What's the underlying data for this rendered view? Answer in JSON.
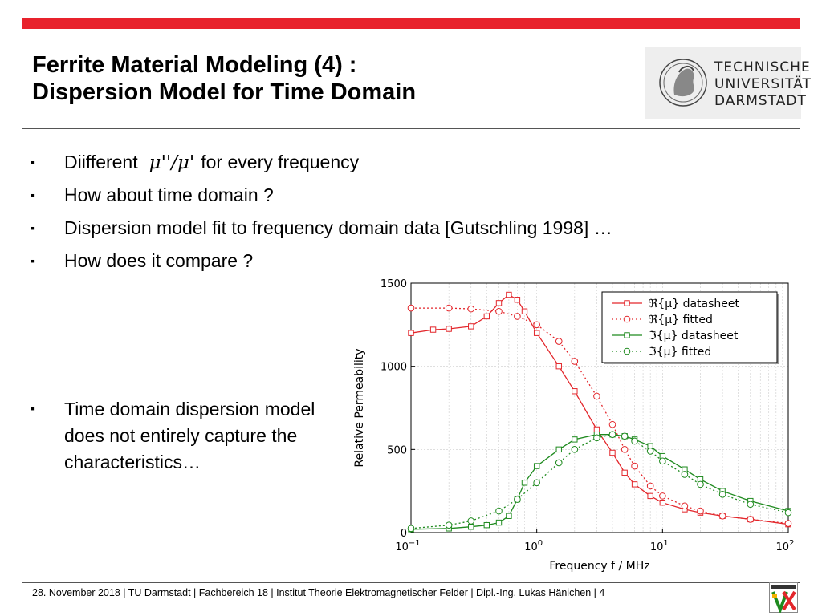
{
  "slide": {
    "title_line1": "Ferrite Material Modeling (4) :",
    "title_line2": "Dispersion Model for Time Domain",
    "logo_lines": [
      "TECHNISCHE",
      "UNIVERSITÄT",
      "DARMSTADT"
    ],
    "bullet_marker": "▪",
    "bullets": {
      "b1_pre": "Diifferent",
      "b1_math": "μ''/μ'",
      "b1_post": "for every frequency",
      "b2": "How about time domain ?",
      "b3": "Dispersion model fit to frequency domain data [Gutschling 1998] …",
      "b4": "How does it compare ?",
      "b5": "Time domain dispersion model does not entirely capture the characteristics…"
    },
    "footer": "28. November 2018  |  TU Darmstadt  |  Fachbereich 18  |  Institut Theorie Elektromagnetischer Felder  |  Dipl.-Ing. Lukas Hänichen  |  4"
  },
  "colors": {
    "accent_bar": "#e8222c",
    "series_red": "#e3262b",
    "series_green": "#1e8a1e"
  },
  "chart_data": {
    "type": "line",
    "xscale": "log",
    "xlim": [
      0.1,
      100
    ],
    "ylim": [
      0,
      1500
    ],
    "xlabel": "Frequency  f  /  MHz",
    "ylabel": "Relative Permeability",
    "x_ticks": [
      {
        "value": 0.1,
        "base": "10",
        "exp": "−1"
      },
      {
        "value": 1,
        "base": "10",
        "exp": "0"
      },
      {
        "value": 10,
        "base": "10",
        "exp": "1"
      },
      {
        "value": 100,
        "base": "10",
        "exp": "2"
      }
    ],
    "y_ticks": [
      {
        "value": 0,
        "label": "0"
      },
      {
        "value": 500,
        "label": "500"
      },
      {
        "value": 1000,
        "label": "1000"
      },
      {
        "value": 1500,
        "label": "1500"
      }
    ],
    "grid": true,
    "legend_position": "top-right",
    "series": [
      {
        "name": "ℜ{μ} datasheet",
        "color": "#e3262b",
        "marker": "square",
        "style": "solid",
        "x": [
          0.1,
          0.15,
          0.2,
          0.3,
          0.4,
          0.5,
          0.6,
          0.7,
          0.8,
          1,
          1.5,
          2,
          3,
          4,
          5,
          6,
          8,
          10,
          15,
          20,
          30,
          50,
          100
        ],
        "y": [
          1200,
          1220,
          1225,
          1240,
          1300,
          1380,
          1430,
          1400,
          1330,
          1200,
          1000,
          850,
          620,
          480,
          360,
          290,
          220,
          180,
          140,
          120,
          100,
          80,
          50
        ]
      },
      {
        "name": "ℜ{μ} fitted",
        "color": "#e3262b",
        "marker": "circle",
        "style": "dotted",
        "x": [
          0.1,
          0.2,
          0.3,
          0.5,
          0.7,
          1,
          1.5,
          2,
          3,
          4,
          5,
          6,
          8,
          10,
          15,
          20,
          30,
          50,
          100
        ],
        "y": [
          1350,
          1350,
          1345,
          1330,
          1300,
          1250,
          1150,
          1030,
          820,
          650,
          500,
          400,
          280,
          220,
          160,
          130,
          100,
          80,
          55
        ]
      },
      {
        "name": "ℑ{μ} datasheet",
        "color": "#1e8a1e",
        "marker": "square",
        "style": "solid",
        "x": [
          0.1,
          0.2,
          0.3,
          0.4,
          0.5,
          0.6,
          0.7,
          0.8,
          1,
          1.5,
          2,
          3,
          4,
          5,
          6,
          8,
          10,
          15,
          20,
          30,
          50,
          100
        ],
        "y": [
          20,
          25,
          35,
          45,
          60,
          100,
          200,
          300,
          400,
          500,
          560,
          590,
          590,
          580,
          560,
          520,
          460,
          380,
          320,
          250,
          190,
          130
        ]
      },
      {
        "name": "ℑ{μ} fitted",
        "color": "#1e8a1e",
        "marker": "circle",
        "style": "dotted",
        "x": [
          0.1,
          0.2,
          0.3,
          0.5,
          0.7,
          1,
          1.5,
          2,
          3,
          4,
          5,
          6,
          8,
          10,
          15,
          20,
          30,
          50,
          100
        ],
        "y": [
          25,
          45,
          70,
          130,
          200,
          300,
          420,
          500,
          570,
          590,
          580,
          550,
          490,
          430,
          350,
          290,
          230,
          170,
          120
        ]
      }
    ]
  }
}
